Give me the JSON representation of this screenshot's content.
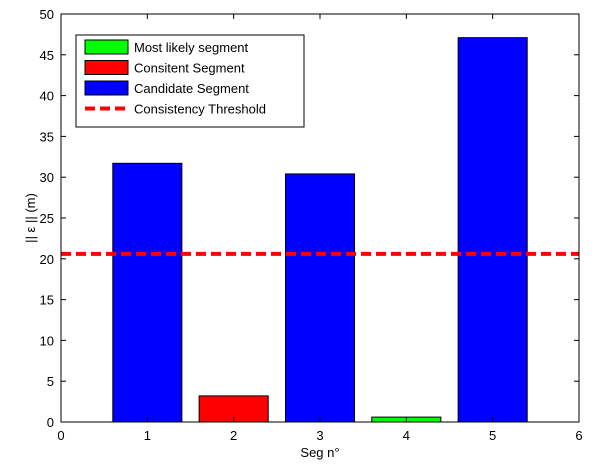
{
  "chart_data": {
    "type": "bar",
    "title": "",
    "xlabel": "Seg n°",
    "ylabel": "|| ε || (m)",
    "xlim": [
      0,
      6
    ],
    "ylim": [
      0,
      50
    ],
    "xticks": [
      0,
      1,
      2,
      3,
      4,
      5,
      6
    ],
    "yticks": [
      0,
      5,
      10,
      15,
      20,
      25,
      30,
      35,
      40,
      45,
      50
    ],
    "grid": false,
    "legend_position": "top-left",
    "bars": [
      {
        "x": 1,
        "value": 31.7,
        "series": "Candidate Segment"
      },
      {
        "x": 2,
        "value": 3.2,
        "series": "Consitent Segment"
      },
      {
        "x": 3,
        "value": 30.4,
        "series": "Candidate Segment"
      },
      {
        "x": 4,
        "value": 0.6,
        "series": "Most likely segment"
      },
      {
        "x": 5,
        "value": 47.1,
        "series": "Candidate Segment"
      }
    ],
    "threshold": {
      "name": "Consistency Threshold",
      "value": 20.6,
      "color": "#ff0000",
      "style": "dashed"
    },
    "series": [
      {
        "name": "Most likely segment",
        "color": "#00ff00",
        "kind": "bar"
      },
      {
        "name": "Consitent Segment",
        "color": "#ff0000",
        "kind": "bar"
      },
      {
        "name": "Candidate Segment",
        "color": "#0000ff",
        "kind": "bar"
      },
      {
        "name": "Consistency Threshold",
        "color": "#ff0000",
        "kind": "dashed-line"
      }
    ]
  }
}
